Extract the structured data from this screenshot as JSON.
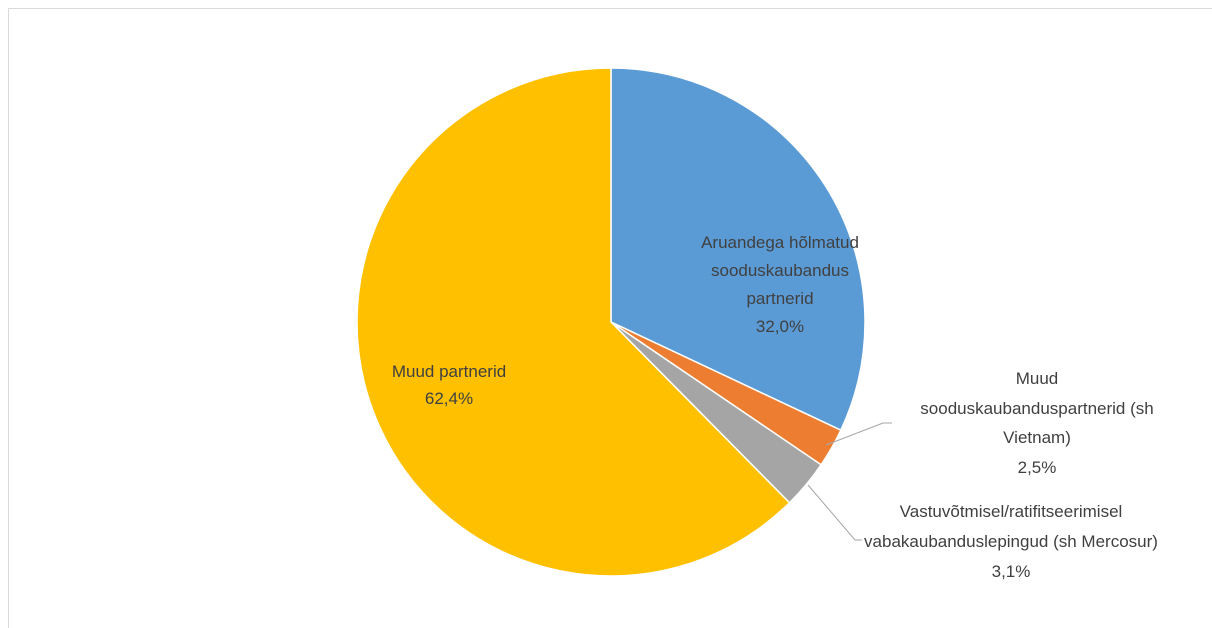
{
  "chart_data": {
    "type": "pie",
    "categories": [
      "Aruandega hõlmatud sooduskaubandus partnerid",
      "Muud sooduskaubanduspartnerid (sh Vietnam)",
      "Vastuvõtmisel/ratifitseerimisel vabakaubanduslepingud (sh Mercosur)",
      "Muud partnerid"
    ],
    "values": [
      32.0,
      2.5,
      3.1,
      62.4
    ],
    "value_labels": [
      "32,0%",
      "2,5%",
      "3,1%",
      "62,4%"
    ],
    "colors": [
      "#5b9bd5",
      "#ed7d31",
      "#a5a5a5",
      "#ffc000"
    ]
  }
}
